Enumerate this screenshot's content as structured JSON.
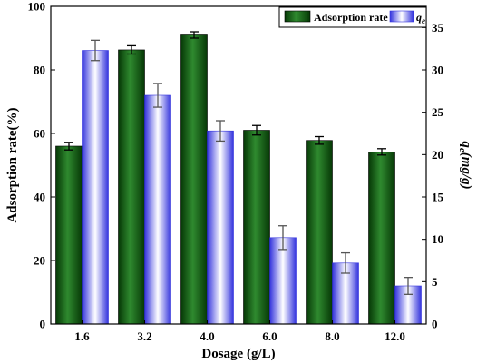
{
  "chart_data": {
    "type": "bar",
    "categories": [
      "1.6",
      "3.2",
      "4.0",
      "6.0",
      "8.0",
      "12.0"
    ],
    "xlabel": "Dosage (g/L)",
    "ylabel": "Adsorption rate(%)",
    "y2label": "q_e(mg/g)",
    "ylim": [
      0,
      100
    ],
    "y2lim": [
      0,
      37.5
    ],
    "yticks": [
      0,
      20,
      40,
      60,
      80,
      100
    ],
    "y2ticks": [
      0,
      5,
      10,
      15,
      20,
      25,
      30,
      35
    ],
    "series": [
      {
        "name": "Adsorption rate",
        "axis": "left",
        "color": "#0b5a0b",
        "values": [
          56.0,
          86.3,
          91.0,
          61.0,
          57.8,
          54.2
        ],
        "errors": [
          1.2,
          1.3,
          1.0,
          1.5,
          1.2,
          1.0
        ]
      },
      {
        "name": "q_e",
        "axis": "right",
        "color": "#5555ee",
        "values": [
          32.3,
          27.0,
          22.8,
          10.2,
          7.2,
          4.5
        ],
        "errors": [
          1.2,
          1.4,
          1.2,
          1.4,
          1.2,
          1.0
        ]
      }
    ],
    "grid": false,
    "legend": "top-right"
  }
}
